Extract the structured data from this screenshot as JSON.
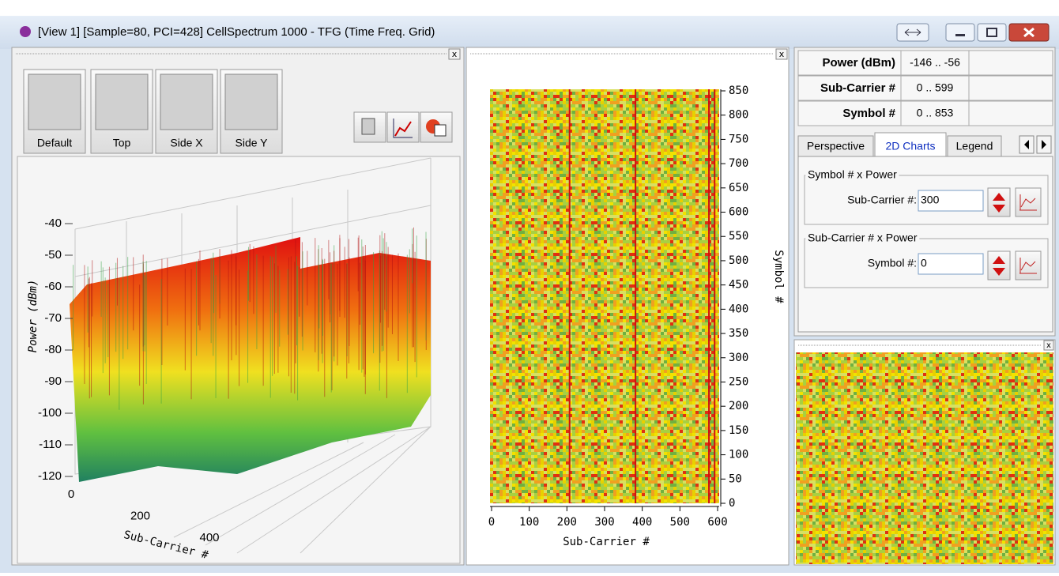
{
  "window": {
    "title": "[View 1] [Sample=80, PCI=428] CellSpectrum 1000 - TFG (Time Freq. Grid)"
  },
  "toolbar": {
    "buttons": [
      "Default",
      "Top",
      "Side X",
      "Side Y"
    ]
  },
  "surface_plot": {
    "z_axis_label": "Power (dBm)",
    "z_ticks": [
      -40,
      -50,
      -60,
      -70,
      -80,
      -90,
      -100,
      -110,
      -120
    ],
    "x_axis_label": "Sub-Carrier #",
    "x_ticks": [
      0,
      200,
      400
    ]
  },
  "heatmap": {
    "x_axis_label": "Sub-Carrier #",
    "xlim": [
      0,
      600
    ],
    "x_ticks": [
      0,
      100,
      200,
      300,
      400,
      500,
      600
    ],
    "y_axis_label": "Symbol #",
    "ylim": [
      0,
      850
    ],
    "y_ticks": [
      0,
      50,
      100,
      150,
      200,
      250,
      300,
      350,
      400,
      450,
      500,
      550,
      600,
      650,
      700,
      750,
      800,
      850
    ]
  },
  "info_table": {
    "rows": [
      [
        "Power (dBm)",
        "-146 .. -56"
      ],
      [
        "Sub-Carrier #",
        "0 .. 599"
      ],
      [
        "Symbol #",
        "0 .. 853"
      ]
    ]
  },
  "tabs": [
    "Perspective",
    "2D Charts",
    "Legend"
  ],
  "groups": [
    {
      "title": "Symbol # x Power",
      "field_label": "Sub-Carrier #:",
      "field_value": "300"
    },
    {
      "title": "Sub-Carrier # x Power",
      "field_label": "Symbol #:",
      "field_value": "0"
    }
  ]
}
